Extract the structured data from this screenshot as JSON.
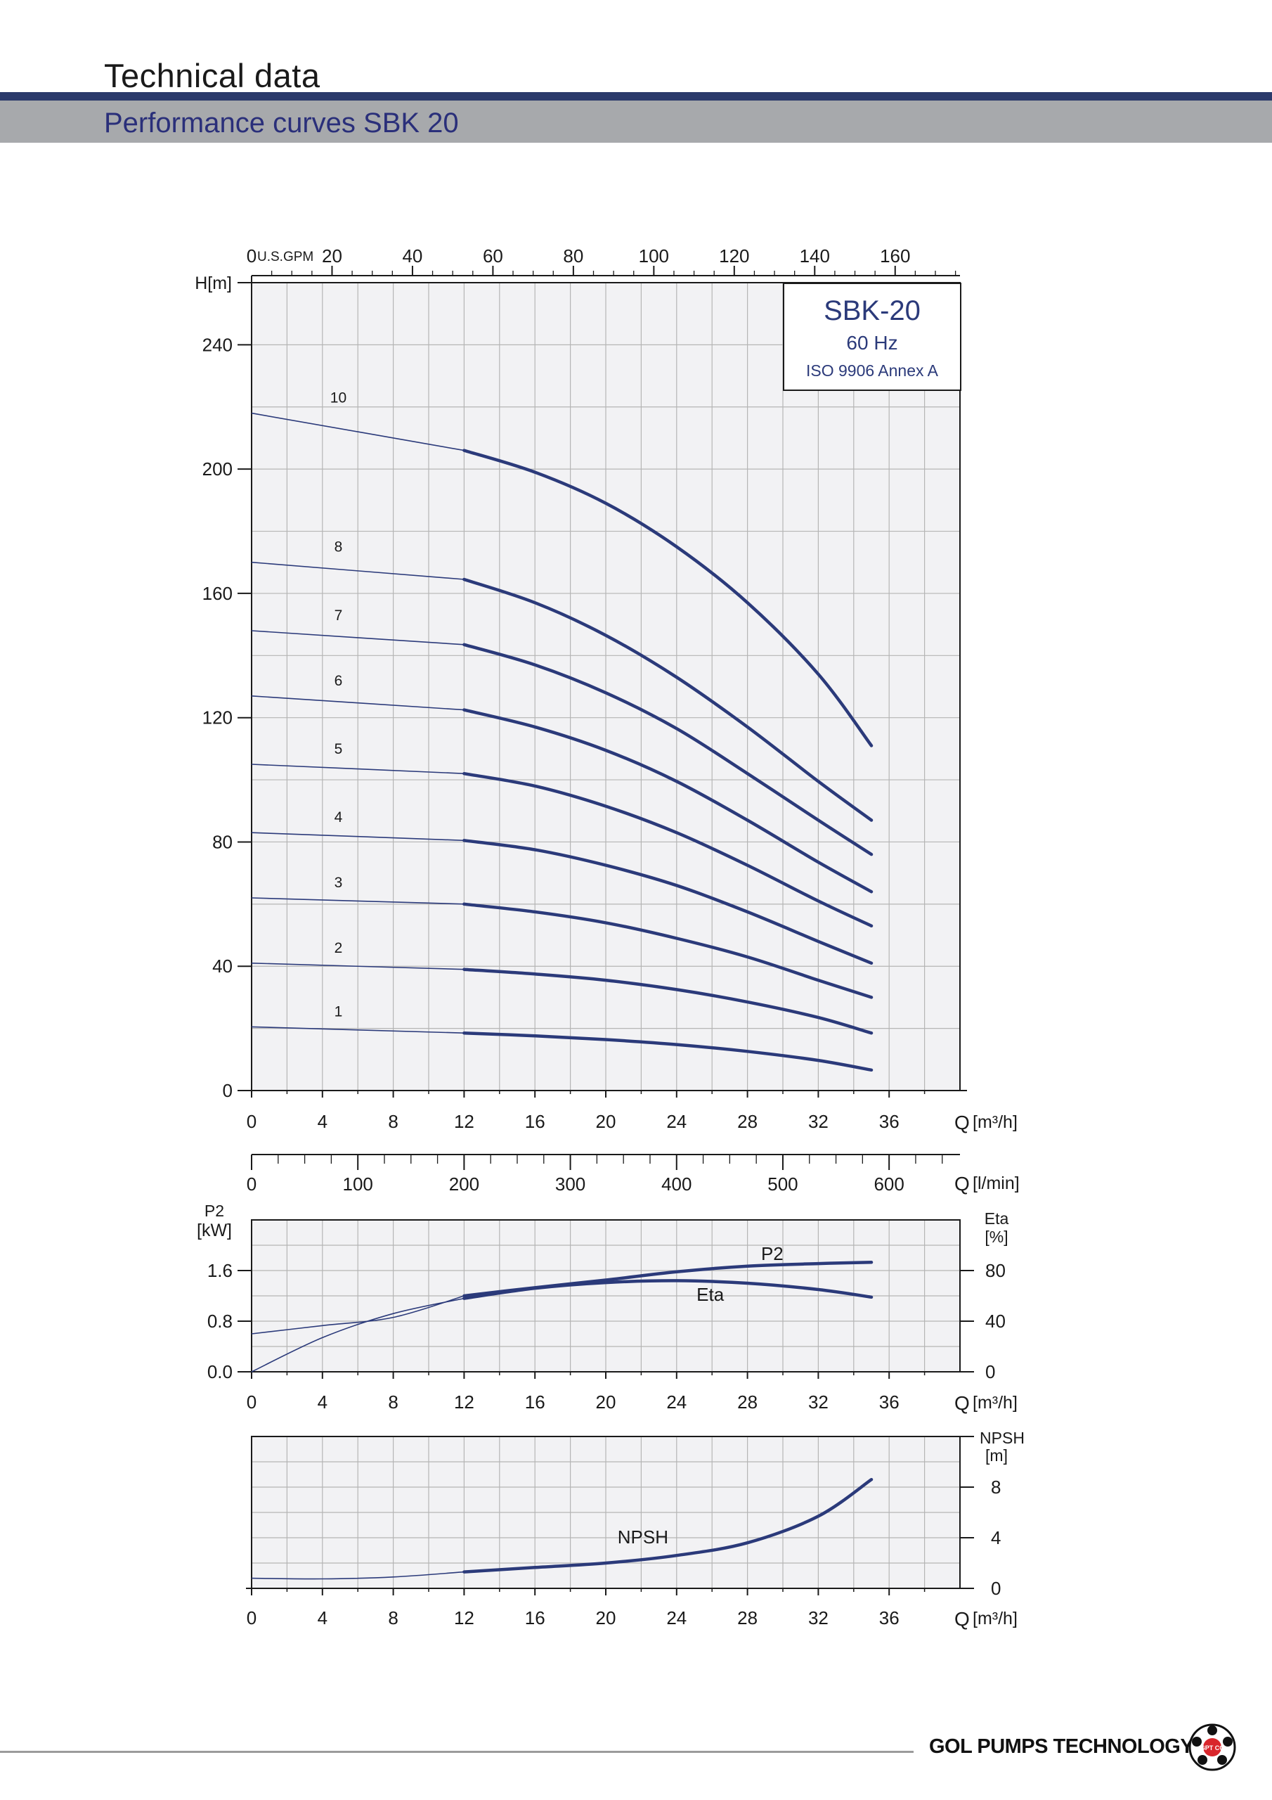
{
  "header": {
    "title": "Technical data",
    "subtitle": "Performance curves SBK 20"
  },
  "legend_box": {
    "model": "SBK-20",
    "frequency": "60 Hz",
    "standard": "ISO 9906 Annex A"
  },
  "footer": {
    "company": "GOL PUMPS TECHNOLOGY INC",
    "logo_text": "GPT CO"
  },
  "colors": {
    "curve": "#2b3a7a",
    "grid": "#b5b5b5",
    "plot_bg": "#f2f2f4",
    "header_bar": "#2b3a6b",
    "subheader_bar": "#a7a9ac",
    "subtitle_text": "#2a2f7a"
  },
  "chart_data": [
    {
      "type": "line",
      "name": "head",
      "xlabel": "Q [m³/h]",
      "ylabel": "H[m]",
      "xlim": [
        0,
        40
      ],
      "ylim": [
        0,
        260
      ],
      "x_ticks": [
        "0",
        "4",
        "8",
        "12",
        "16",
        "20",
        "24",
        "28",
        "32",
        "36"
      ],
      "y_ticks": [
        "0",
        "40",
        "80",
        "120",
        "160",
        "200",
        "240"
      ],
      "top_axis": {
        "label": "U.S.GPM",
        "zero_label": "0",
        "ticks": [
          "20",
          "40",
          "60",
          "80",
          "100",
          "120",
          "140",
          "160"
        ]
      },
      "grid": true,
      "series": [
        {
          "name": "1",
          "points": [
            [
              0,
              20.5
            ],
            [
              12,
              18.5
            ],
            [
              16,
              17.6
            ],
            [
              20,
              16.4
            ],
            [
              24,
              14.8
            ],
            [
              28,
              12.6
            ],
            [
              32,
              9.7
            ],
            [
              35,
              6.6
            ]
          ]
        },
        {
          "name": "2",
          "points": [
            [
              0,
              41
            ],
            [
              12,
              39
            ],
            [
              16,
              37.5
            ],
            [
              20,
              35.5
            ],
            [
              24,
              32.5
            ],
            [
              28,
              28.5
            ],
            [
              32,
              23.5
            ],
            [
              35,
              18.5
            ]
          ]
        },
        {
          "name": "3",
          "points": [
            [
              0,
              62
            ],
            [
              12,
              60
            ],
            [
              16,
              57.5
            ],
            [
              20,
              54
            ],
            [
              24,
              49
            ],
            [
              28,
              43
            ],
            [
              32,
              35.5
            ],
            [
              35,
              30
            ]
          ]
        },
        {
          "name": "4",
          "points": [
            [
              0,
              83
            ],
            [
              12,
              80.5
            ],
            [
              16,
              77.5
            ],
            [
              20,
              72.5
            ],
            [
              24,
              66
            ],
            [
              28,
              57.5
            ],
            [
              32,
              48
            ],
            [
              35,
              41
            ]
          ]
        },
        {
          "name": "5",
          "points": [
            [
              0,
              105
            ],
            [
              12,
              102
            ],
            [
              16,
              98
            ],
            [
              20,
              91.5
            ],
            [
              24,
              83
            ],
            [
              28,
              72.5
            ],
            [
              32,
              61
            ],
            [
              35,
              53
            ]
          ]
        },
        {
          "name": "6",
          "points": [
            [
              0,
              127
            ],
            [
              12,
              122.5
            ],
            [
              16,
              117
            ],
            [
              20,
              109.5
            ],
            [
              24,
              99.5
            ],
            [
              28,
              87
            ],
            [
              32,
              73.5
            ],
            [
              35,
              64
            ]
          ]
        },
        {
          "name": "7",
          "points": [
            [
              0,
              148
            ],
            [
              12,
              143.5
            ],
            [
              16,
              137
            ],
            [
              20,
              128
            ],
            [
              24,
              116.5
            ],
            [
              28,
              102
            ],
            [
              32,
              87
            ],
            [
              35,
              76
            ]
          ]
        },
        {
          "name": "8",
          "points": [
            [
              0,
              170
            ],
            [
              12,
              164.5
            ],
            [
              16,
              157
            ],
            [
              20,
              146.5
            ],
            [
              24,
              133
            ],
            [
              28,
              117
            ],
            [
              32,
              99.5
            ],
            [
              35,
              87
            ]
          ]
        },
        {
          "name": "10",
          "points": [
            [
              0,
              218
            ],
            [
              12,
              206
            ],
            [
              16,
              199
            ],
            [
              20,
              189
            ],
            [
              24,
              175
            ],
            [
              28,
              157
            ],
            [
              32,
              134
            ],
            [
              35,
              111
            ]
          ]
        }
      ]
    },
    {
      "type": "line",
      "name": "flow_lmin_axis",
      "xlabel": "Q [l/min]",
      "xlim": [
        0,
        666.7
      ],
      "x_ticks": [
        "0",
        "100",
        "200",
        "300",
        "400",
        "500",
        "600"
      ]
    },
    {
      "type": "line",
      "name": "power_efficiency",
      "xlabel": "Q [m³/h]",
      "ylabel_left_top": "P2",
      "ylabel_left_bottom": "[kW]",
      "ylabel_right_top": "Eta",
      "ylabel_right_bottom": "[%]",
      "xlim": [
        0,
        40
      ],
      "ylim_left": [
        0,
        2.4
      ],
      "ylim_right": [
        0,
        120
      ],
      "x_ticks": [
        "0",
        "4",
        "8",
        "12",
        "16",
        "20",
        "24",
        "28",
        "32",
        "36"
      ],
      "y_ticks_left": [
        "0.0",
        "0.8",
        "1.6"
      ],
      "y_ticks_right": [
        "0",
        "40",
        "80"
      ],
      "grid": true,
      "series": [
        {
          "name": "P2",
          "axis": "left",
          "points": [
            [
              0,
              0.6
            ],
            [
              4,
              0.73
            ],
            [
              8,
              0.86
            ],
            [
              12,
              1.2
            ],
            [
              16,
              1.33
            ],
            [
              20,
              1.45
            ],
            [
              24,
              1.58
            ],
            [
              28,
              1.67
            ],
            [
              32,
              1.71
            ],
            [
              35,
              1.73
            ]
          ]
        },
        {
          "name": "Eta",
          "axis": "right",
          "points": [
            [
              0,
              0
            ],
            [
              4,
              27
            ],
            [
              8,
              46
            ],
            [
              12,
              58
            ],
            [
              16,
              66
            ],
            [
              20,
              70.5
            ],
            [
              24,
              72
            ],
            [
              28,
              70
            ],
            [
              32,
              65
            ],
            [
              35,
              59
            ]
          ]
        }
      ]
    },
    {
      "type": "line",
      "name": "npsh",
      "xlabel": "Q [m³/h]",
      "ylabel_right_top": "NPSH",
      "ylabel_right_bottom": "[m]",
      "xlim": [
        0,
        40
      ],
      "ylim": [
        0,
        12
      ],
      "x_ticks": [
        "0",
        "4",
        "8",
        "12",
        "16",
        "20",
        "24",
        "28",
        "32",
        "36"
      ],
      "y_ticks_right": [
        "0",
        "4",
        "8"
      ],
      "grid": true,
      "series": [
        {
          "name": "NPSH",
          "points": [
            [
              0,
              0.8
            ],
            [
              4,
              0.75
            ],
            [
              8,
              0.9
            ],
            [
              12,
              1.3
            ],
            [
              16,
              1.65
            ],
            [
              20,
              2.0
            ],
            [
              24,
              2.6
            ],
            [
              28,
              3.6
            ],
            [
              32,
              5.7
            ],
            [
              35,
              8.6
            ]
          ]
        }
      ]
    }
  ]
}
